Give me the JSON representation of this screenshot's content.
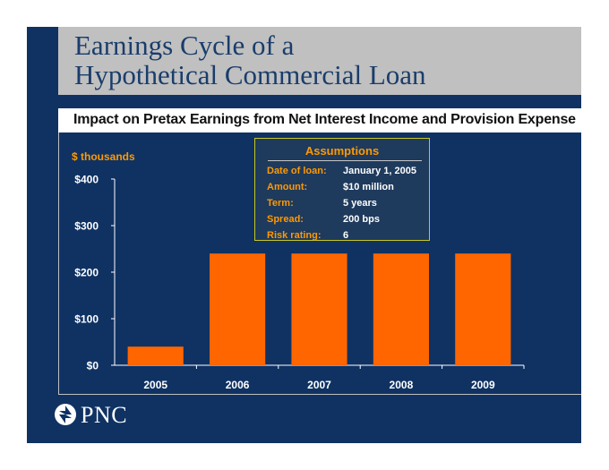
{
  "title_lines": [
    "Earnings Cycle of a",
    "Hypothetical Commercial Loan"
  ],
  "subtitle": "Impact on Pretax Earnings from Net Interest Income and Provision Expense",
  "units_label": "$ thousands",
  "assumptions": {
    "heading": "Assumptions",
    "rows": [
      {
        "label": "Date of loan:",
        "value": "January 1, 2005"
      },
      {
        "label": "Amount:",
        "value": "$10 million"
      },
      {
        "label": "Term:",
        "value": "5 years"
      },
      {
        "label": "Spread:",
        "value": "200 bps"
      },
      {
        "label": "Risk rating:",
        "value": "6"
      }
    ]
  },
  "logo": {
    "text": "PNC"
  },
  "colors": {
    "background": "#0f3263",
    "bar": "#ff6600",
    "accent": "#ff9900",
    "title": "#1a3d6b",
    "frame": "#c0c0c0"
  },
  "chart_data": {
    "type": "bar",
    "categories": [
      "2005",
      "2006",
      "2007",
      "2008",
      "2009"
    ],
    "values": [
      40,
      240,
      240,
      240,
      240
    ],
    "ylim": [
      0,
      400
    ],
    "yticks": [
      0,
      100,
      200,
      300,
      400
    ],
    "ytick_labels": [
      "$0",
      "$100",
      "$200",
      "$300",
      "$400"
    ],
    "title": "",
    "xlabel": "",
    "ylabel": "$ thousands",
    "grid": false,
    "legend": "none"
  }
}
